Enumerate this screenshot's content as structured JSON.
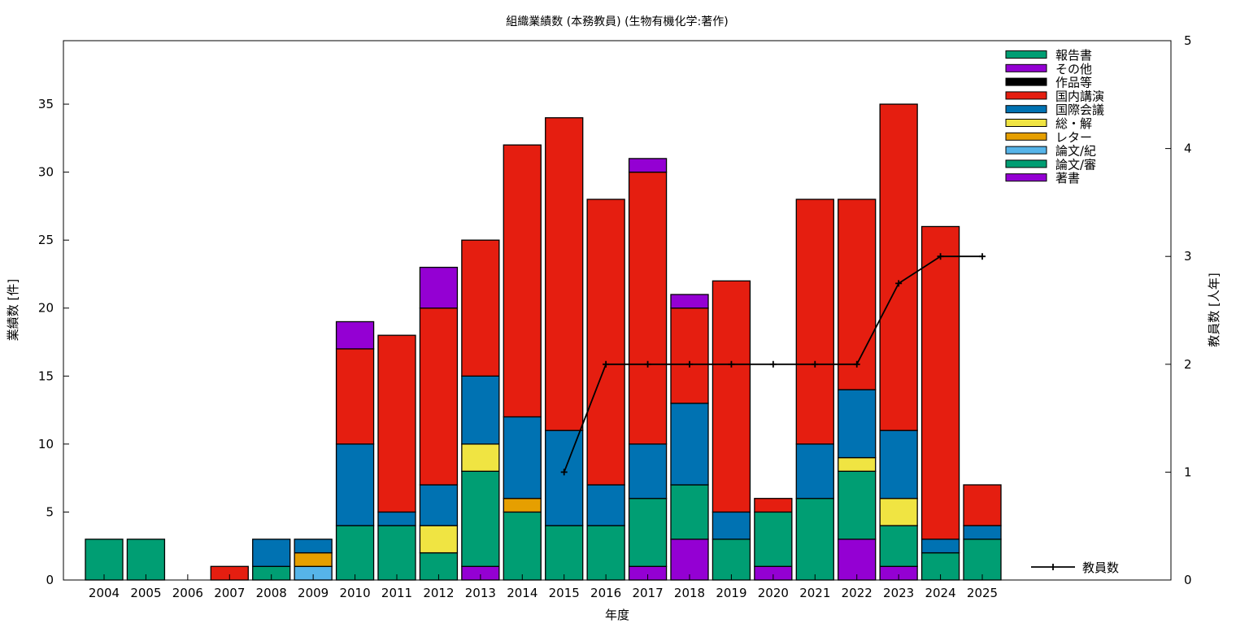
{
  "chart_data": {
    "type": "bar",
    "stacked": true,
    "title": "組織業績数 (本務教員) (生物有機化学:著作)",
    "xlabel": "年度",
    "ylabel": "業績数 [件]",
    "y2label": "教員数 [人年]",
    "ylim": [
      0,
      39.67
    ],
    "y2lim": [
      0,
      5
    ],
    "yticks": [
      0,
      5,
      10,
      15,
      20,
      25,
      30,
      35
    ],
    "y2ticks": [
      0,
      1,
      2,
      3,
      4,
      5
    ],
    "legend_placement": "top-right",
    "categories": [
      "2004",
      "2005",
      "2006",
      "2007",
      "2008",
      "2009",
      "2010",
      "2011",
      "2012",
      "2013",
      "2014",
      "2015",
      "2016",
      "2017",
      "2018",
      "2019",
      "2020",
      "2021",
      "2022",
      "2023",
      "2024",
      "2025"
    ],
    "series": [
      {
        "name": "著書",
        "color": "#9400d3",
        "values": [
          0,
          0,
          0,
          0,
          0,
          0,
          0,
          0,
          0,
          1,
          0,
          0,
          0,
          1,
          3,
          0,
          1,
          0,
          3,
          1,
          0,
          0
        ]
      },
      {
        "name": "論文/審",
        "color": "#009e73",
        "values": [
          3,
          3,
          0,
          0,
          1,
          0,
          4,
          4,
          2,
          7,
          5,
          4,
          4,
          5,
          4,
          3,
          4,
          6,
          5,
          3,
          2,
          3
        ]
      },
      {
        "name": "論文/紀",
        "color": "#56b4e9",
        "values": [
          0,
          0,
          0,
          0,
          0,
          1,
          0,
          0,
          0,
          0,
          0,
          0,
          0,
          0,
          0,
          0,
          0,
          0,
          0,
          0,
          0,
          0
        ]
      },
      {
        "name": "レター",
        "color": "#e69f00",
        "values": [
          0,
          0,
          0,
          0,
          0,
          1,
          0,
          0,
          0,
          0,
          1,
          0,
          0,
          0,
          0,
          0,
          0,
          0,
          0,
          0,
          0,
          0
        ]
      },
      {
        "name": "総・解",
        "color": "#f0e442",
        "values": [
          0,
          0,
          0,
          0,
          0,
          0,
          0,
          0,
          2,
          2,
          0,
          0,
          0,
          0,
          0,
          0,
          0,
          0,
          1,
          2,
          0,
          0
        ]
      },
      {
        "name": "国際会議",
        "color": "#0072b2",
        "values": [
          0,
          0,
          0,
          0,
          2,
          1,
          6,
          1,
          3,
          5,
          6,
          7,
          3,
          4,
          6,
          2,
          0,
          4,
          5,
          5,
          1,
          1
        ]
      },
      {
        "name": "国内講演",
        "color": "#e51e10",
        "values": [
          0,
          0,
          0,
          1,
          0,
          0,
          7,
          13,
          13,
          10,
          20,
          23,
          21,
          20,
          7,
          17,
          1,
          18,
          14,
          24,
          23,
          3
        ]
      },
      {
        "name": "作品等",
        "color": "#000000",
        "values": [
          0,
          0,
          0,
          0,
          0,
          0,
          0,
          0,
          0,
          0,
          0,
          0,
          0,
          0,
          0,
          0,
          0,
          0,
          0,
          0,
          0,
          0
        ]
      },
      {
        "name": "その他",
        "color": "#9400d3",
        "values": [
          0,
          0,
          0,
          0,
          0,
          0,
          2,
          0,
          3,
          0,
          0,
          0,
          0,
          1,
          1,
          0,
          0,
          0,
          0,
          0,
          0,
          0
        ]
      },
      {
        "name": "報告書",
        "color": "#009e73",
        "values": [
          0,
          0,
          0,
          0,
          0,
          0,
          0,
          0,
          0,
          0,
          0,
          0,
          0,
          0,
          0,
          0,
          0,
          0,
          0,
          0,
          0,
          0
        ]
      }
    ],
    "line": {
      "name": "教員数",
      "axis": "y2",
      "x": [
        "2015",
        "2016",
        "2017",
        "2018",
        "2019",
        "2020",
        "2021",
        "2022",
        "2023",
        "2024",
        "2025"
      ],
      "values": [
        1,
        2,
        2,
        2,
        2,
        2,
        2,
        2,
        2.75,
        3,
        3
      ]
    }
  }
}
